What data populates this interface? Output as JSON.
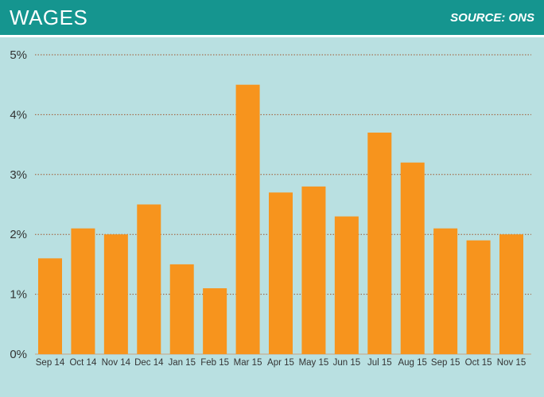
{
  "header": {
    "title": "WAGES",
    "source": "SOURCE: ONS"
  },
  "colors": {
    "header_bg": "#15958f",
    "plot_bg": "#b9e0e1",
    "bar": "#f7941d",
    "gridline": "#a0562e"
  },
  "chart_data": {
    "type": "bar",
    "title": "WAGES",
    "categories": [
      "Sep 14",
      "Oct 14",
      "Nov 14",
      "Dec 14",
      "Jan 15",
      "Feb 15",
      "Mar 15",
      "Apr 15",
      "May 15",
      "Jun 15",
      "Jul 15",
      "Aug 15",
      "Sep 15",
      "Oct 15",
      "Nov 15"
    ],
    "values": [
      1.6,
      2.1,
      2.0,
      2.5,
      1.5,
      1.1,
      4.5,
      2.7,
      2.8,
      2.3,
      3.7,
      3.2,
      2.1,
      1.9,
      2.0
    ],
    "unit": "%",
    "ylim": [
      0,
      5
    ],
    "yticks": [
      "0%",
      "1%",
      "2%",
      "3%",
      "4%",
      "5%"
    ],
    "grid": true,
    "legend": "none"
  }
}
